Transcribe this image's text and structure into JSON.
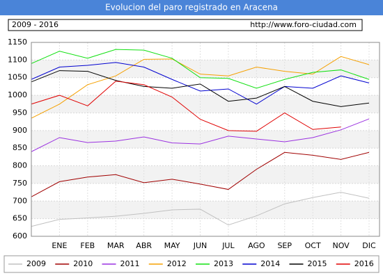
{
  "chart_data": {
    "type": "line",
    "title": "Evolucion del paro registrado en Aracena",
    "subtitle": "2009 - 2016",
    "source": "http://www.foro-ciudad.com",
    "categories": [
      null,
      "ENE",
      "FEB",
      "MAR",
      "ABR",
      "MAY",
      "JUN",
      "JUL",
      "AGO",
      "SEP",
      "OCT",
      "NOV",
      "DIC"
    ],
    "ylim": [
      600,
      1150
    ],
    "yticks": [
      600,
      650,
      700,
      750,
      800,
      850,
      900,
      950,
      1000,
      1050,
      1100,
      1150
    ],
    "grid": true,
    "legend": "bottom",
    "series": [
      {
        "name": "2009",
        "color": "#c0c0c0",
        "values": [
          628,
          648,
          652,
          657,
          665,
          675,
          677,
          632,
          658,
          692,
          710,
          725,
          708
        ]
      },
      {
        "name": "2010",
        "color": "#a00000",
        "values": [
          712,
          755,
          768,
          775,
          752,
          762,
          748,
          733,
          790,
          838,
          830,
          818,
          838
        ]
      },
      {
        "name": "2011",
        "color": "#9a30e0",
        "values": [
          840,
          880,
          866,
          870,
          882,
          865,
          862,
          884,
          876,
          868,
          880,
          902,
          933
        ]
      },
      {
        "name": "2012",
        "color": "#f5a000",
        "values": [
          935,
          975,
          1030,
          1055,
          1102,
          1103,
          1060,
          1055,
          1080,
          1068,
          1060,
          1110,
          1087
        ]
      },
      {
        "name": "2013",
        "color": "#10e010",
        "values": [
          1090,
          1125,
          1105,
          1130,
          1128,
          1105,
          1050,
          1048,
          1020,
          1045,
          1065,
          1072,
          1045
        ]
      },
      {
        "name": "2014",
        "color": "#0000d0",
        "values": [
          1045,
          1080,
          1085,
          1093,
          1080,
          1045,
          1012,
          1018,
          975,
          1025,
          1020,
          1055,
          1035
        ]
      },
      {
        "name": "2015",
        "color": "#000000",
        "values": [
          1038,
          1070,
          1068,
          1042,
          1025,
          1020,
          1032,
          983,
          992,
          1025,
          983,
          968,
          978
        ]
      },
      {
        "name": "2016",
        "color": "#e00000",
        "values": [
          975,
          1000,
          970,
          1040,
          1030,
          995,
          932,
          900,
          898,
          950,
          903,
          910,
          null
        ]
      }
    ]
  }
}
